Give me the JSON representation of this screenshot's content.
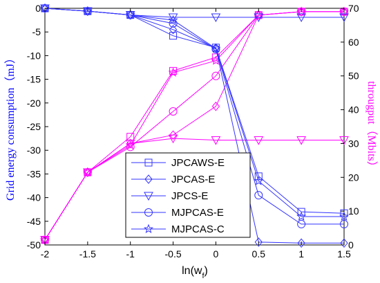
{
  "chart_data": {
    "type": "line",
    "x": [
      -2,
      -1.5,
      -1,
      -0.5,
      0,
      0.5,
      1,
      1.5
    ],
    "xticks": [
      "-2",
      "-1.5",
      "-1",
      "-0.5",
      "0",
      "0.5",
      "1",
      "1.5"
    ],
    "xlim": [
      -2,
      1.5
    ],
    "xlabel_main": "ln(w",
    "xlabel_sub": "f",
    "xlabel_close": ")",
    "left_axis": {
      "label": "Grid energy consumption（mJ）",
      "ylim": [
        -50,
        0
      ],
      "ticks": [
        0,
        -5,
        -10,
        -15,
        -20,
        -25,
        -30,
        -35,
        -40,
        -45,
        -50
      ],
      "color": "#0000ff"
    },
    "right_axis": {
      "label": "througput（Mbits）",
      "ylim": [
        0,
        70
      ],
      "ticks": [
        0,
        10,
        20,
        30,
        40,
        50,
        60,
        70
      ],
      "color": "#ff00ff"
    },
    "energy_series": [
      {
        "name": "JPCAWS-E",
        "marker": "square",
        "values": [
          0,
          -0.6,
          -1.4,
          -5.8,
          -8.3,
          -35.5,
          -43.0,
          -43.3
        ]
      },
      {
        "name": "JPCAS-E",
        "marker": "diamond",
        "values": [
          0,
          -0.6,
          -1.4,
          -4.5,
          -8.4,
          -49.4,
          -49.6,
          -49.6
        ]
      },
      {
        "name": "JPCS-E",
        "marker": "triangle-down",
        "values": [
          0,
          -0.6,
          -1.4,
          -1.9,
          -1.9,
          -1.9,
          -1.9,
          -1.9
        ]
      },
      {
        "name": "MJPCAS-E",
        "marker": "circle",
        "values": [
          0,
          -0.6,
          -1.4,
          -3.2,
          -8.6,
          -39.5,
          -45.6,
          -45.6
        ]
      },
      {
        "name": "MJPCAS-C",
        "marker": "star",
        "values": [
          0,
          -0.6,
          -1.4,
          -2.5,
          -8.5,
          -36.5,
          -44.0,
          -44.0
        ]
      }
    ],
    "throughput_series": [
      {
        "name": "JPCAWS-E",
        "marker": "square",
        "values": [
          1.5,
          21.5,
          32,
          51.5,
          55.5,
          68,
          69,
          69
        ]
      },
      {
        "name": "JPCAS-E",
        "marker": "diamond",
        "values": [
          1.5,
          21.5,
          30,
          32.5,
          41,
          68,
          69,
          69
        ]
      },
      {
        "name": "JPCS-E",
        "marker": "triangle-down",
        "values": [
          1.5,
          21.5,
          30,
          31.5,
          31,
          31,
          31,
          31
        ]
      },
      {
        "name": "MJPCAS-E",
        "marker": "circle",
        "values": [
          1.5,
          21.5,
          29,
          39.5,
          50,
          68,
          69,
          69
        ]
      },
      {
        "name": "MJPCAS-C",
        "marker": "star",
        "values": [
          1.5,
          21.5,
          29.5,
          51,
          54.5,
          68,
          69,
          69
        ]
      }
    ],
    "legend": {
      "placement": "lower-center",
      "entries": [
        "JPCAWS-E",
        "JPCAS-E",
        "JPCS-E",
        "MJPCAS-E",
        "MJPCAS-C"
      ]
    },
    "grid": false,
    "colors": {
      "energy": "#3333ff",
      "throughput": "#ff00ff"
    }
  }
}
